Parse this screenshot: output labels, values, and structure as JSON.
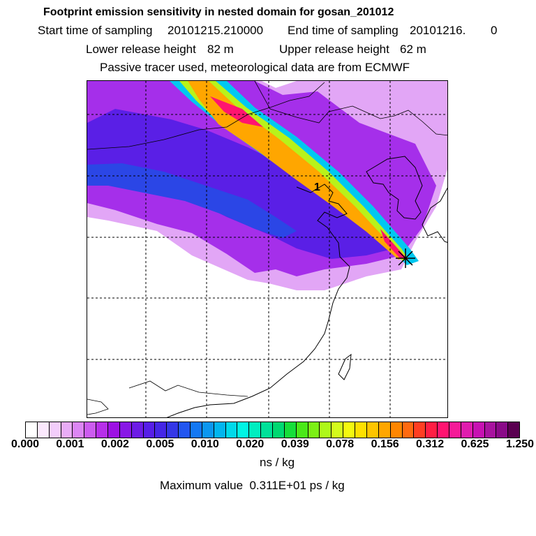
{
  "header": {
    "title": "Footprint emission sensitivity in nested domain for gosan_201012",
    "start_label": "Start time of sampling",
    "start_value": "20101215.210000",
    "end_label": "End time of sampling",
    "end_value": "20101216.",
    "end_hour": "0",
    "lower_label": "Lower release height",
    "lower_value": "82 m",
    "upper_label": "Upper release height",
    "upper_value": "62 m",
    "tracer_note": "Passive tracer used, meteorological data are from ECMWF"
  },
  "map": {
    "receptor_symbol": "star-receptor",
    "label_marker": "1"
  },
  "colorbar": {
    "ticks": [
      "0.000",
      "0.001",
      "0.002",
      "0.005",
      "0.010",
      "0.020",
      "0.039",
      "0.078",
      "0.156",
      "0.312",
      "0.625",
      "1.250"
    ],
    "units": "ns / kg",
    "colors": [
      "#ffffff",
      "#fbe8fd",
      "#f3cdfb",
      "#e9acf7",
      "#dc86f4",
      "#cc5cf0",
      "#b72fea",
      "#9d11e3",
      "#8818e6",
      "#6d1ce6",
      "#571ee8",
      "#4526e6",
      "#3437e6",
      "#2356f0",
      "#1478f3",
      "#0c97f0",
      "#02b5ef",
      "#00d9ea",
      "#00f5e4",
      "#00eec0",
      "#00e199",
      "#00d871",
      "#16de3a",
      "#4ae818",
      "#7cf016",
      "#aef81a",
      "#d4fb1c",
      "#f5f90e",
      "#ffe000",
      "#ffc500",
      "#ffa600",
      "#ff8600",
      "#ff6a10",
      "#ff3e22",
      "#ff1e44",
      "#ff1470",
      "#f51b98",
      "#e01cae",
      "#c711b2",
      "#a8139f",
      "#8a0a88",
      "#5a0050"
    ]
  },
  "max_value": {
    "text": "Maximum value  0.311E+01 ps / kg"
  }
}
